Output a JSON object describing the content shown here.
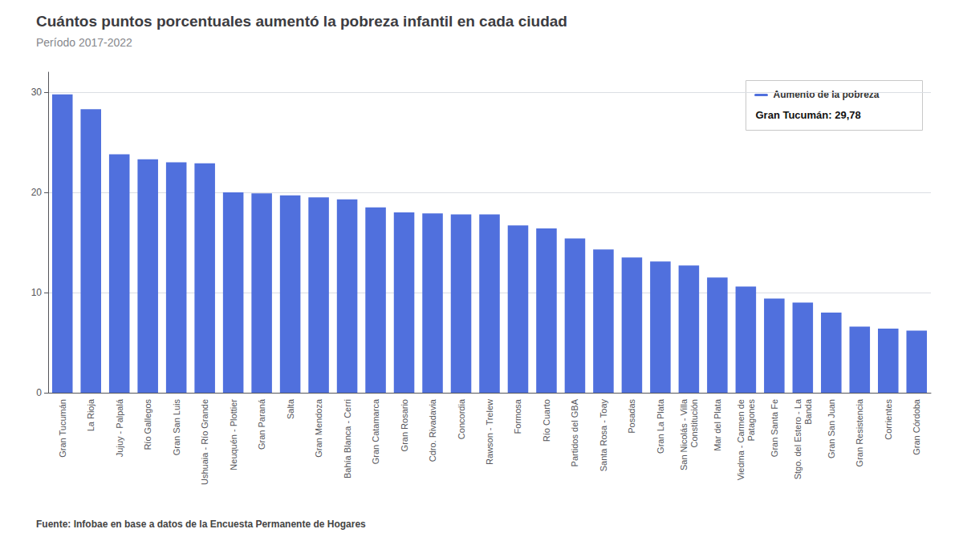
{
  "chart_data": {
    "type": "bar",
    "title": "Cuántos puntos porcentuales aumentó la pobreza infantil en cada ciudad",
    "subtitle": "Período 2017-2022",
    "source": "Fuente: Infobae en base a datos de la Encuesta Permanente de Hogares",
    "categories": [
      "Gran Tucumán",
      "La Rioja",
      "Jujuy - Palpalá",
      "Río Gallegos",
      "Gran San Luis",
      "Ushuaia - Río Grande",
      "Neuquén - Plottier",
      "Gran Paraná",
      "Salta",
      "Gran Mendoza",
      "Bahía Blanca - Cerri",
      "Gran Catamarca",
      "Gran Rosario",
      "Cdro. Rivadavia",
      "Concordia",
      "Rawson - Trelew",
      "Formosa",
      "Río Cuarto",
      "Partidos del GBA",
      "Santa Rosa - Toay",
      "Posadas",
      "Gran La Plata",
      "San Nicolás - Villa\nConstitución",
      "Mar del Plata",
      "Viedma - Carmen de\nPatagones",
      "Gran Santa Fe",
      "Stgo. del Estero - La\nBanda",
      "Gran San Juan",
      "Gran Resistencia",
      "Corrientes",
      "Gran Córdoba"
    ],
    "values": [
      29.78,
      28.3,
      23.8,
      23.3,
      23.0,
      22.9,
      20.0,
      19.9,
      19.7,
      19.5,
      19.3,
      18.5,
      18.0,
      17.9,
      17.8,
      17.8,
      16.7,
      16.4,
      15.4,
      14.3,
      13.5,
      13.1,
      12.7,
      11.5,
      10.6,
      9.4,
      9.0,
      8.0,
      6.6,
      6.4,
      6.2
    ],
    "ylim": [
      0,
      32
    ],
    "yticks": [
      0,
      10,
      20,
      30
    ],
    "grid": true,
    "annotation": {
      "label": "Aumento de la pobreza",
      "text": "Gran Tucumán: 29,78"
    }
  }
}
